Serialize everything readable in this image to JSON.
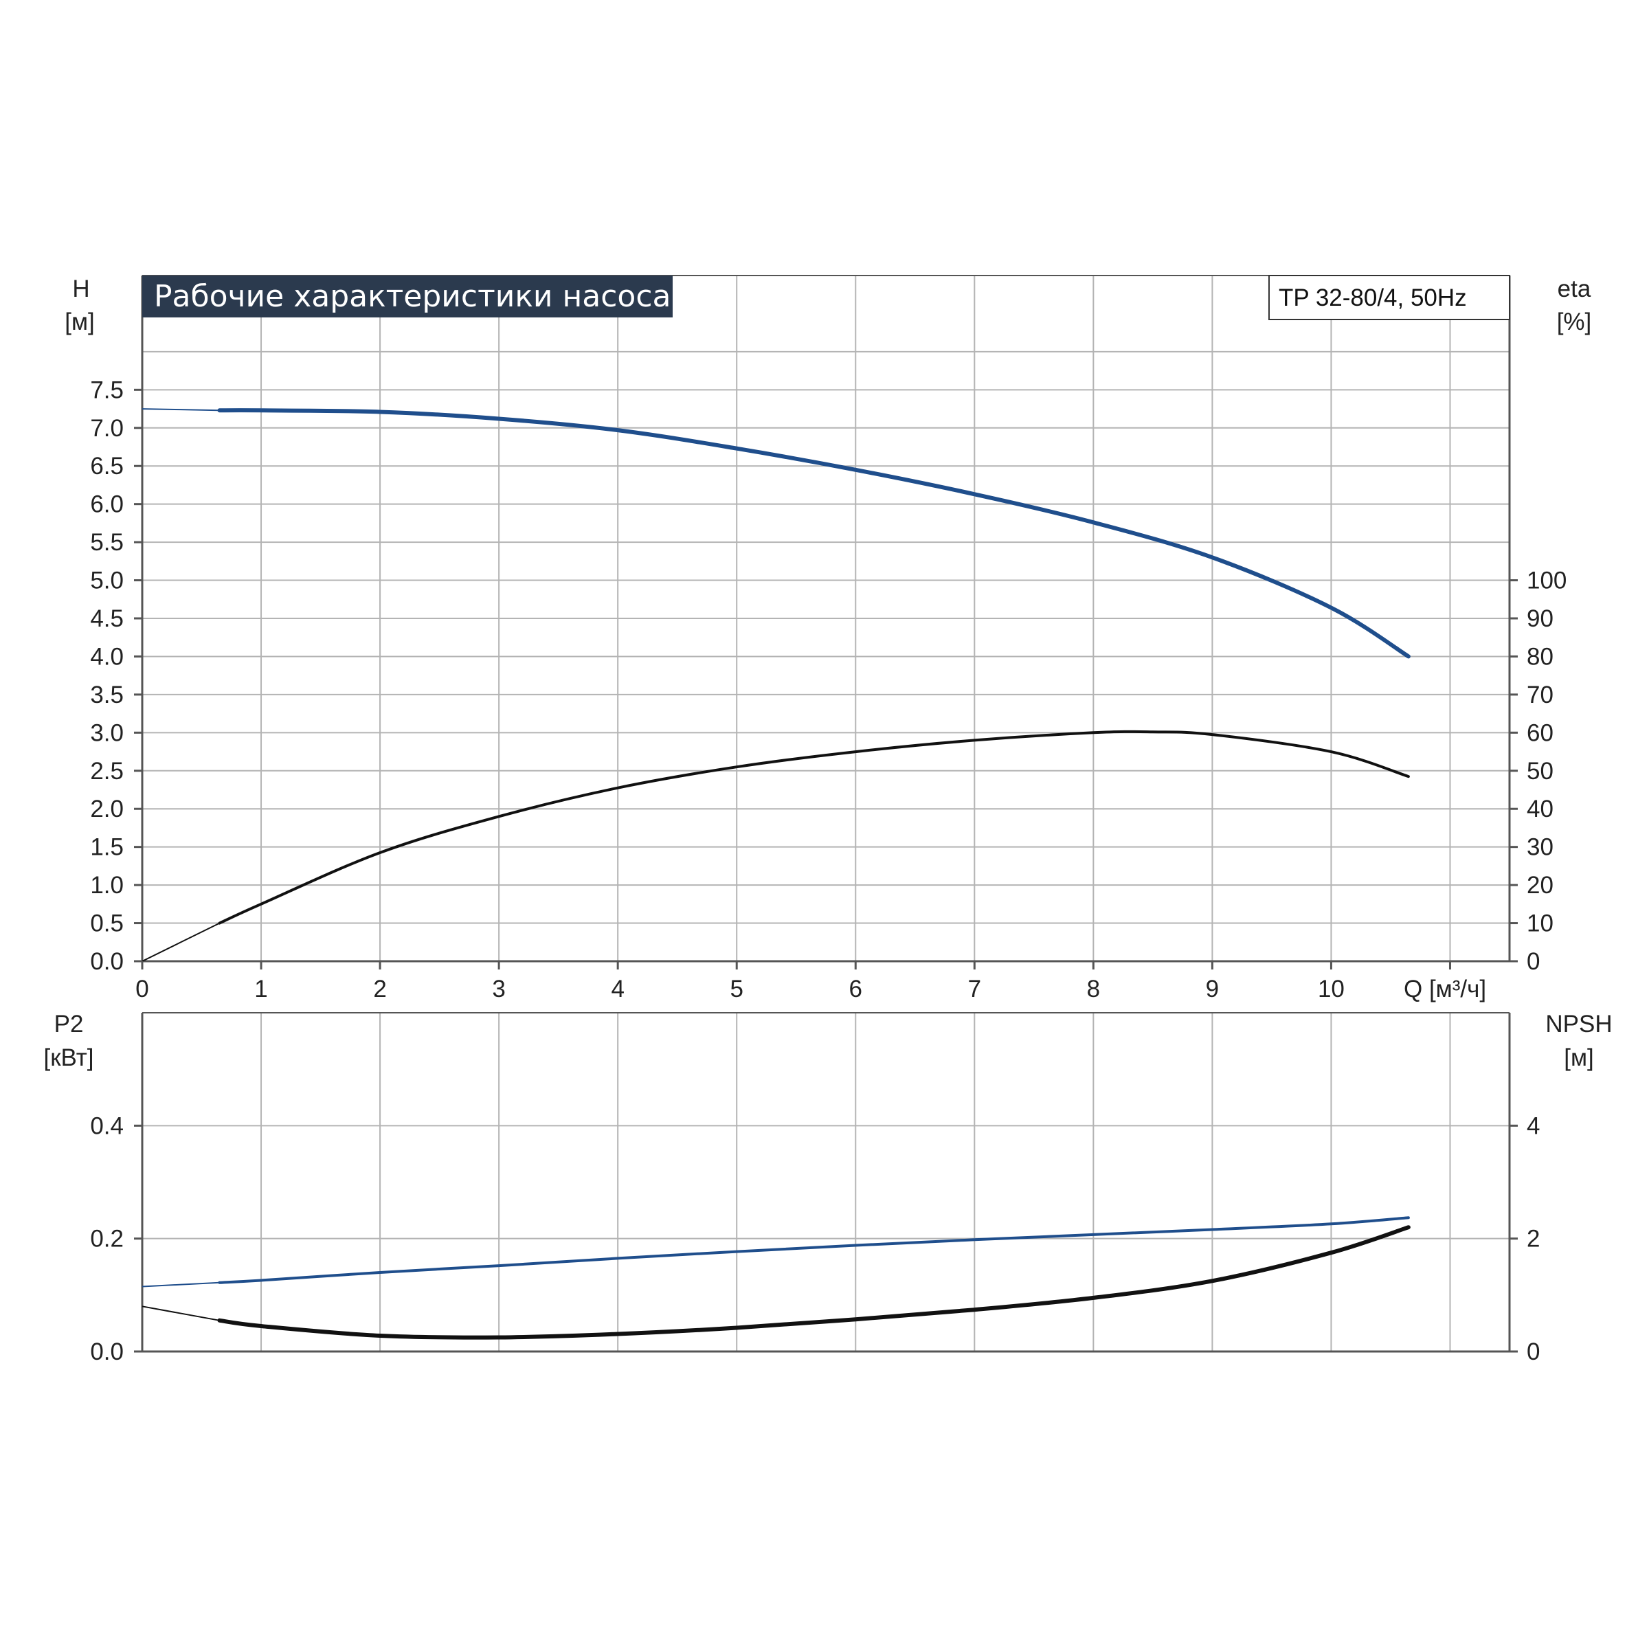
{
  "header": {
    "title": "Рабочие характеристики насоса",
    "model": "TP 32-80/4, 50Hz"
  },
  "colors": {
    "head_curve": "#1f4e8c",
    "efficiency_curve": "#111111",
    "p2_curve": "#1f4e8c",
    "npsh_curve": "#111111",
    "title_bg": "#2b3a4e",
    "grid": "#b4b4b4",
    "axis": "#555555"
  },
  "chart_data": [
    {
      "id": "top",
      "type": "line",
      "x_axis": {
        "label": "Q [м³/ч]",
        "range": [
          0,
          11.5
        ],
        "ticks": [
          0,
          1,
          2,
          3,
          4,
          5,
          6,
          7,
          8,
          9,
          10
        ],
        "tick_labels": [
          "0",
          "1",
          "2",
          "3",
          "4",
          "5",
          "6",
          "7",
          "8",
          "9",
          "10"
        ]
      },
      "y_left": {
        "label_top": "H",
        "label_bottom": "[м]",
        "range": [
          0,
          9
        ],
        "ticks": [
          0,
          0.5,
          1,
          1.5,
          2,
          2.5,
          3,
          3.5,
          4,
          4.5,
          5,
          5.5,
          6,
          6.5,
          7,
          7.5
        ],
        "tick_labels": [
          "0.0",
          "0.5",
          "1.0",
          "1.5",
          "2.0",
          "2.5",
          "3.0",
          "3.5",
          "4.0",
          "4.5",
          "5.0",
          "5.5",
          "6.0",
          "6.5",
          "7.0",
          "7.5"
        ]
      },
      "y_right": {
        "label_top": "eta",
        "label_bottom": "[%]",
        "range": [
          0,
          180
        ],
        "ticks": [
          0,
          10,
          20,
          30,
          40,
          50,
          60,
          70,
          80,
          90,
          100
        ],
        "tick_labels": [
          "0",
          "10",
          "20",
          "30",
          "40",
          "50",
          "60",
          "70",
          "80",
          "90",
          "100"
        ]
      },
      "grid": true,
      "series": [
        {
          "axis": "left",
          "x": [
            0,
            0.65,
            1,
            2,
            3,
            4,
            5,
            6,
            7,
            8,
            9,
            10,
            10.65
          ],
          "y": [
            7.25,
            7.23,
            7.23,
            7.21,
            7.12,
            6.97,
            6.73,
            6.45,
            6.13,
            5.76,
            5.3,
            4.64,
            4.0
          ]
        },
        {
          "axis": "right",
          "x": [
            0,
            0.65,
            1,
            2,
            3,
            4,
            5,
            6,
            7,
            8,
            8.5,
            9,
            10,
            10.65
          ],
          "y": [
            0,
            10,
            15,
            28.5,
            38,
            45.5,
            51,
            55,
            58,
            60,
            60.2,
            59.5,
            55,
            48.5
          ]
        }
      ]
    },
    {
      "id": "bottom",
      "type": "line",
      "x_axis": {
        "range": [
          0,
          11.5
        ],
        "ticks": [
          0,
          1,
          2,
          3,
          4,
          5,
          6,
          7,
          8,
          9,
          10,
          11
        ]
      },
      "y_left": {
        "label_top": "P2",
        "label_bottom": "[кВт]",
        "range": [
          0,
          0.6
        ],
        "ticks": [
          0,
          0.2,
          0.4
        ],
        "tick_labels": [
          "0.0",
          "0.2",
          "0.4"
        ]
      },
      "y_right": {
        "label_top": "NPSH",
        "label_bottom": "[м]",
        "range": [
          0,
          6
        ],
        "ticks": [
          0,
          2,
          4
        ],
        "tick_labels": [
          "0",
          "2",
          "4"
        ]
      },
      "grid": true,
      "series": [
        {
          "axis": "left",
          "x": [
            0,
            0.65,
            1,
            2,
            3,
            4,
            5,
            6,
            7,
            8,
            9,
            10,
            10.65
          ],
          "y": [
            0.115,
            0.122,
            0.126,
            0.14,
            0.152,
            0.165,
            0.177,
            0.188,
            0.198,
            0.207,
            0.216,
            0.226,
            0.237
          ]
        },
        {
          "axis": "right",
          "x": [
            0,
            0.65,
            1,
            2,
            3,
            4,
            5,
            6,
            7,
            8,
            9,
            10,
            10.65
          ],
          "y": [
            0.8,
            0.55,
            0.45,
            0.28,
            0.25,
            0.31,
            0.42,
            0.57,
            0.74,
            0.95,
            1.25,
            1.75,
            2.2
          ]
        }
      ]
    }
  ]
}
